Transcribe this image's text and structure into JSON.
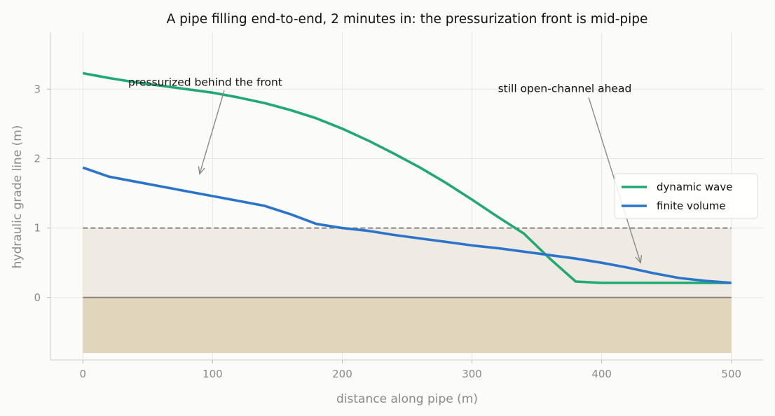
{
  "chart_data": {
    "type": "line",
    "title": "A pipe filling end-to-end, 2 minutes in: the pressurization front is mid-pipe",
    "xlabel": "distance along pipe (m)",
    "ylabel": "hydraulic grade line (m)",
    "xlim": [
      -25,
      525
    ],
    "ylim": [
      -0.9,
      3.82
    ],
    "xticks": [
      0,
      100,
      200,
      300,
      400,
      500
    ],
    "yticks": [
      0,
      1,
      2,
      3
    ],
    "grid": true,
    "legend_position": "center-right",
    "pipe_crown": 1.0,
    "pipe_invert": 0.0,
    "ground_bottom": -0.8,
    "colors": {
      "pipe_interior": "#efebe3",
      "ground": "#e1d6bc",
      "crown_line": "#8a857e",
      "invert_line": "#8a857e"
    },
    "series": [
      {
        "name": "dynamic wave",
        "color": "#20a974",
        "x": [
          0,
          20,
          40,
          60,
          80,
          100,
          120,
          140,
          160,
          180,
          200,
          220,
          240,
          260,
          280,
          300,
          320,
          340,
          360,
          380,
          400,
          420,
          440,
          460,
          480,
          500
        ],
        "y": [
          3.23,
          3.16,
          3.1,
          3.05,
          3.0,
          2.95,
          2.88,
          2.8,
          2.7,
          2.58,
          2.43,
          2.26,
          2.07,
          1.87,
          1.65,
          1.41,
          1.16,
          0.92,
          0.56,
          0.23,
          0.21,
          0.21,
          0.21,
          0.21,
          0.21,
          0.21
        ]
      },
      {
        "name": "finite volume",
        "color": "#2b74cc",
        "x": [
          0,
          20,
          40,
          60,
          80,
          100,
          120,
          140,
          160,
          180,
          200,
          220,
          240,
          260,
          280,
          300,
          320,
          340,
          360,
          380,
          400,
          420,
          440,
          460,
          480,
          500
        ],
        "y": [
          1.87,
          1.74,
          1.67,
          1.6,
          1.53,
          1.46,
          1.39,
          1.32,
          1.2,
          1.06,
          1.0,
          0.96,
          0.9,
          0.85,
          0.8,
          0.75,
          0.71,
          0.66,
          0.61,
          0.56,
          0.5,
          0.43,
          0.35,
          0.28,
          0.24,
          0.21
        ]
      }
    ],
    "annotations": [
      {
        "text": "pressurized behind the front",
        "text_x": 35,
        "text_y": 3.05,
        "point_x": 90,
        "point_y": 1.78,
        "tail_x": 109,
        "tail_y": 2.98
      },
      {
        "text": "still open-channel ahead",
        "text_x": 320,
        "text_y": 2.96,
        "point_x": 430,
        "point_y": 0.5,
        "tail_x": 390,
        "tail_y": 2.88
      }
    ]
  }
}
